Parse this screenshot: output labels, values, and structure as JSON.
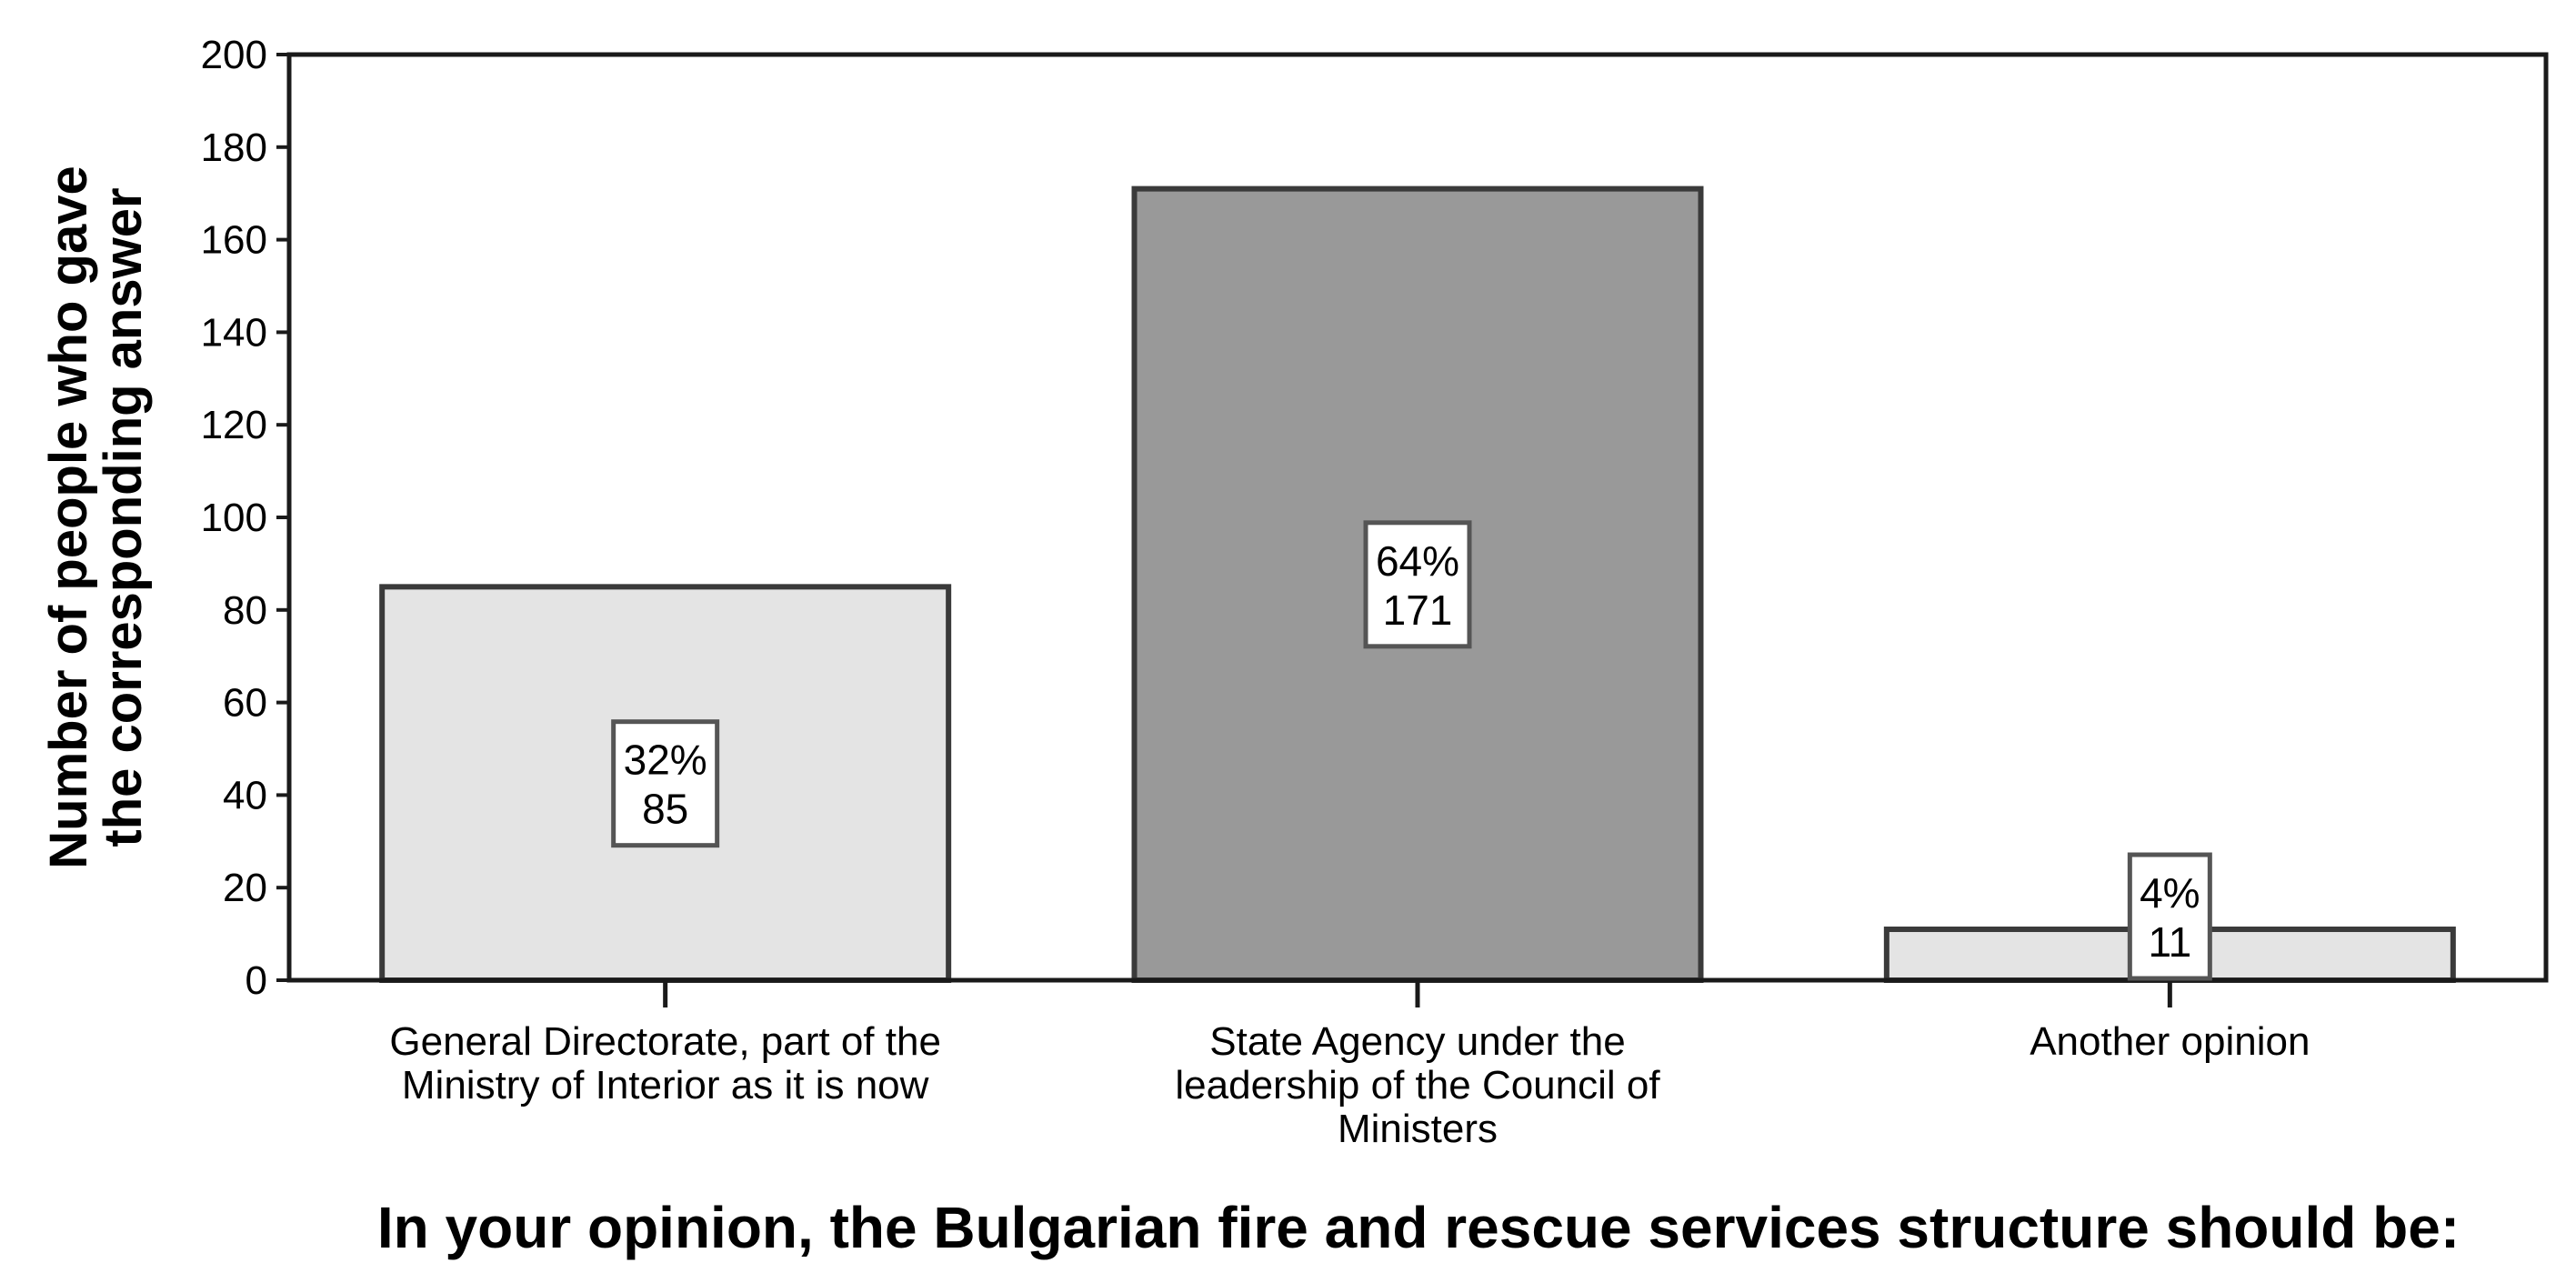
{
  "chart_data": {
    "type": "bar",
    "title": "",
    "xlabel": "In your opinion, the Bulgarian fire and rescue services structure should be:",
    "ylabel_lines": [
      "Number of people who gave",
      "the corresponding answer"
    ],
    "ylim": [
      0,
      200
    ],
    "yticks": [
      0,
      20,
      40,
      60,
      80,
      100,
      120,
      140,
      160,
      180,
      200
    ],
    "grid": false,
    "categories": [
      [
        "General Directorate, part of the",
        "Ministry of Interior as it is now"
      ],
      [
        "State Agency under the",
        "leadership of the Council of",
        "Ministers"
      ],
      [
        "Another opinion"
      ]
    ],
    "values": [
      85,
      171,
      11
    ],
    "percent_labels": [
      "32%",
      "64%",
      "4%"
    ],
    "bar_colors": [
      "#e4e4e4",
      "#999999",
      "#e4e4e4"
    ]
  }
}
